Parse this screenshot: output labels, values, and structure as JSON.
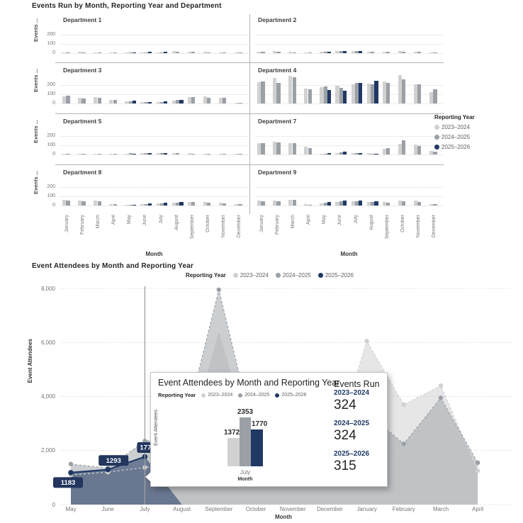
{
  "colors": {
    "y2023": "#d1d1d1",
    "y2024": "#9aa0a6",
    "y2025": "#203864",
    "callout": "#22365e",
    "crosshair": "#9f9f9f",
    "gridline": "#d9d9d9",
    "axis_text": "#757575",
    "title_text": "#252423"
  },
  "chart_data": [
    {
      "id": "events_by_dept",
      "type": "bar",
      "title": "Events Run by Month, Reporting Year and Department",
      "xlabel": "Month",
      "ylabel": "Events ...",
      "ylim": [
        0,
        300
      ],
      "yticks": [
        0,
        100,
        200
      ],
      "categories": [
        "January",
        "February",
        "March",
        "April",
        "May",
        "June",
        "July",
        "August",
        "September",
        "October",
        "November",
        "December"
      ],
      "legend": {
        "title": "Reporting Year",
        "items": [
          "2023–2024",
          "2024–2025",
          "2025–2026"
        ]
      },
      "facets": [
        {
          "name": "Department 1",
          "values": [
            [
              10,
              12,
              10,
              6,
              5,
              8,
              8,
              22,
              14,
              12,
              6,
              4
            ],
            [
              8,
              10,
              8,
              5,
              6,
              9,
              10,
              14,
              12,
              10,
              5,
              4
            ],
            [
              0,
              0,
              0,
              0,
              8,
              12,
              12,
              0,
              0,
              0,
              0,
              0
            ]
          ]
        },
        {
          "name": "Department 2",
          "values": [
            [
              15,
              22,
              12,
              10,
              18,
              20,
              22,
              18,
              15,
              22,
              18,
              10
            ],
            [
              12,
              18,
              10,
              8,
              16,
              22,
              24,
              16,
              14,
              18,
              15,
              8
            ],
            [
              0,
              0,
              0,
              0,
              14,
              22,
              26,
              0,
              0,
              0,
              0,
              0
            ]
          ]
        },
        {
          "name": "Department 3",
          "values": [
            [
              75,
              60,
              70,
              42,
              20,
              12,
              15,
              30,
              72,
              78,
              62,
              8
            ],
            [
              85,
              55,
              62,
              38,
              25,
              15,
              12,
              35,
              68,
              58,
              58,
              6
            ],
            [
              0,
              0,
              0,
              0,
              28,
              16,
              20,
              38,
              0,
              0,
              0,
              0
            ]
          ]
        },
        {
          "name": "Department 4",
          "values": [
            [
              230,
              275,
              300,
              160,
              180,
              195,
              205,
              215,
              240,
              310,
              210,
              120
            ],
            [
              240,
              220,
              285,
              155,
              185,
              170,
              225,
              205,
              225,
              265,
              205,
              155
            ],
            [
              0,
              0,
              0,
              0,
              145,
              140,
              220,
              250,
              0,
              0,
              0,
              0
            ]
          ]
        },
        {
          "name": "Department 5",
          "values": [
            [
              8,
              9,
              10,
              8,
              10,
              12,
              14,
              16,
              12,
              8,
              8,
              8
            ],
            [
              7,
              8,
              8,
              8,
              12,
              14,
              13,
              14,
              10,
              8,
              8,
              6
            ],
            [
              0,
              0,
              0,
              0,
              10,
              14,
              18,
              0,
              0,
              0,
              0,
              0
            ]
          ]
        },
        {
          "name": "Department 7",
          "values": [
            [
              120,
              140,
              122,
              88,
              10,
              18,
              15,
              12,
              58,
              118,
              108,
              38
            ],
            [
              125,
              128,
              125,
              72,
              8,
              25,
              12,
              10,
              72,
              155,
              92,
              32
            ],
            [
              0,
              0,
              0,
              0,
              14,
              30,
              18,
              10,
              0,
              0,
              0,
              0
            ]
          ]
        },
        {
          "name": "Department 8",
          "values": [
            [
              62,
              55,
              55,
              15,
              10,
              15,
              20,
              28,
              42,
              35,
              30,
              14
            ],
            [
              52,
              48,
              50,
              12,
              8,
              16,
              22,
              30,
              36,
              30,
              24,
              12
            ],
            [
              0,
              0,
              0,
              0,
              10,
              20,
              28,
              35,
              0,
              0,
              0,
              0
            ]
          ]
        },
        {
          "name": "Department 9",
          "values": [
            [
              52,
              52,
              62,
              16,
              22,
              38,
              45,
              42,
              38,
              55,
              52,
              18
            ],
            [
              48,
              50,
              58,
              10,
              28,
              45,
              50,
              38,
              32,
              48,
              42,
              12
            ],
            [
              0,
              0,
              0,
              0,
              40,
              55,
              55,
              45,
              0,
              0,
              0,
              0
            ]
          ]
        }
      ]
    },
    {
      "id": "attendees_by_month",
      "type": "area",
      "title": "Event Attendees by Month and Reporting Year",
      "xlabel": "Month",
      "ylabel": "Event Attendees",
      "ylim": [
        0,
        8000
      ],
      "ytick_labels": [
        "0",
        "2,000",
        "4,000",
        "6,000",
        "8,000"
      ],
      "ytick_values": [
        0,
        2000,
        4000,
        6000,
        8000
      ],
      "categories": [
        "May",
        "June",
        "July",
        "August",
        "September",
        "October",
        "November",
        "December",
        "January",
        "February",
        "March",
        "April"
      ],
      "legend": {
        "title": "Reporting Year",
        "items": [
          "2023–2024",
          "2024–2025",
          "2025–2026"
        ]
      },
      "series": [
        {
          "name": "2023–2024",
          "values": [
            1100,
            1200,
            1372,
            1550,
            6450,
            1900,
            2100,
            1600,
            6050,
            3700,
            4400,
            1250
          ]
        },
        {
          "name": "2024–2025",
          "values": [
            1500,
            1350,
            2353,
            2450,
            7950,
            2300,
            3900,
            1900,
            3400,
            2250,
            3950,
            1550
          ]
        },
        {
          "name": "2025–2026",
          "values": [
            1183,
            1293,
            1770,
            null,
            null,
            null,
            null,
            null,
            null,
            null,
            null,
            null
          ]
        }
      ],
      "data_labels": [
        {
          "series": "2025–2026",
          "month": "May",
          "text": "1183",
          "placement": "below-left"
        },
        {
          "series": "2025–2026",
          "month": "June",
          "text": "1293",
          "placement": "above"
        },
        {
          "series": "2025–2026",
          "month": "July",
          "text": "1770",
          "placement": "above-right-clipped"
        }
      ],
      "crosshair_month": "July"
    },
    {
      "id": "tooltip_bar",
      "type": "bar",
      "title": "Event Attendees by Month and Reporting Year",
      "xlabel": "Month",
      "ylabel": "Event Attendees",
      "categories": [
        "July"
      ],
      "legend": {
        "title": "Reporting Year",
        "items": [
          "2023–2024",
          "2024–2025",
          "2025–2026"
        ]
      },
      "series": [
        {
          "name": "2023–2024",
          "values": [
            1372
          ]
        },
        {
          "name": "2024–2025",
          "values": [
            2353
          ]
        },
        {
          "name": "2025–2026",
          "values": [
            1770
          ]
        }
      ]
    }
  ],
  "tooltip_panel": {
    "title": "Event Attendees by Month and Reporting Year",
    "legend_title": "Reporting Year",
    "month_label": "July",
    "month_axis_label": "Month",
    "y_axis_label": "Event Attendees",
    "bar_value_labels": [
      "1372",
      "2353",
      "1770"
    ],
    "events_run_title": "Events Run",
    "rows": [
      {
        "year": "2023–2024",
        "value": "324"
      },
      {
        "year": "2024–2025",
        "value": "324"
      },
      {
        "year": "2025–2026",
        "value": "315"
      }
    ]
  }
}
